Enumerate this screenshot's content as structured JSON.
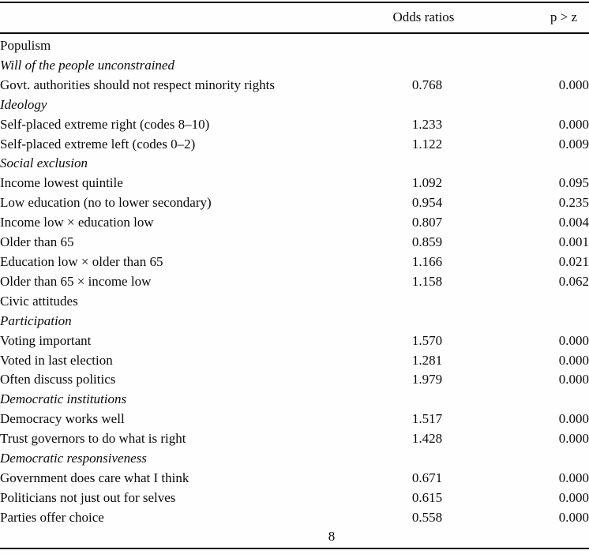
{
  "page": {
    "number": "8"
  },
  "table": {
    "header": {
      "label": "",
      "odds_ratios": "Odds ratios",
      "p_gt_z": "p > z"
    },
    "rows": [
      {
        "label": "Populism",
        "style": "section",
        "odds": "",
        "p": ""
      },
      {
        "label": "Will of the people unconstrained",
        "style": "subsection",
        "odds": "",
        "p": ""
      },
      {
        "label": "Govt. authorities should not respect minority rights",
        "style": "item",
        "odds": "0.768",
        "p": "0.000"
      },
      {
        "label": "Ideology",
        "style": "subsection",
        "odds": "",
        "p": ""
      },
      {
        "label": "Self-placed extreme right (codes 8–10)",
        "style": "item",
        "odds": "1.233",
        "p": "0.000"
      },
      {
        "label": "Self-placed extreme left (codes 0–2)",
        "style": "item",
        "odds": "1.122",
        "p": "0.009"
      },
      {
        "label": "Social exclusion",
        "style": "subsection",
        "odds": "",
        "p": ""
      },
      {
        "label": "Income lowest quintile",
        "style": "item",
        "odds": "1.092",
        "p": "0.095"
      },
      {
        "label": "Low education (no to lower secondary)",
        "style": "item",
        "odds": "0.954",
        "p": "0.235"
      },
      {
        "label": "Income low × education low",
        "style": "item",
        "odds": "0.807",
        "p": "0.004"
      },
      {
        "label": "Older than 65",
        "style": "item",
        "odds": "0.859",
        "p": "0.001"
      },
      {
        "label": "Education low × older than 65",
        "style": "item",
        "odds": "1.166",
        "p": "0.021"
      },
      {
        "label": "Older than 65 × income low",
        "style": "item",
        "odds": "1.158",
        "p": "0.062"
      },
      {
        "label": "Civic attitudes",
        "style": "section",
        "odds": "",
        "p": ""
      },
      {
        "label": "Participation",
        "style": "subsection",
        "odds": "",
        "p": ""
      },
      {
        "label": "Voting important",
        "style": "item",
        "odds": "1.570",
        "p": "0.000"
      },
      {
        "label": "Voted in last election",
        "style": "item",
        "odds": "1.281",
        "p": "0.000"
      },
      {
        "label": "Often discuss politics",
        "style": "item",
        "odds": "1.979",
        "p": "0.000"
      },
      {
        "label": "Democratic institutions",
        "style": "subsection",
        "odds": "",
        "p": ""
      },
      {
        "label": "Democracy works well",
        "style": "item",
        "odds": "1.517",
        "p": "0.000"
      },
      {
        "label": "Trust governors to do what is right",
        "style": "item",
        "odds": "1.428",
        "p": "0.000"
      },
      {
        "label": "Democratic responsiveness",
        "style": "subsection",
        "odds": "",
        "p": ""
      },
      {
        "label": "Government does care what I think",
        "style": "item",
        "odds": "0.671",
        "p": "0.000"
      },
      {
        "label": "Politicians not just out for selves",
        "style": "item",
        "odds": "0.615",
        "p": "0.000"
      },
      {
        "label": "Parties offer choice",
        "style": "item",
        "odds": "0.558",
        "p": "0.000"
      }
    ]
  }
}
